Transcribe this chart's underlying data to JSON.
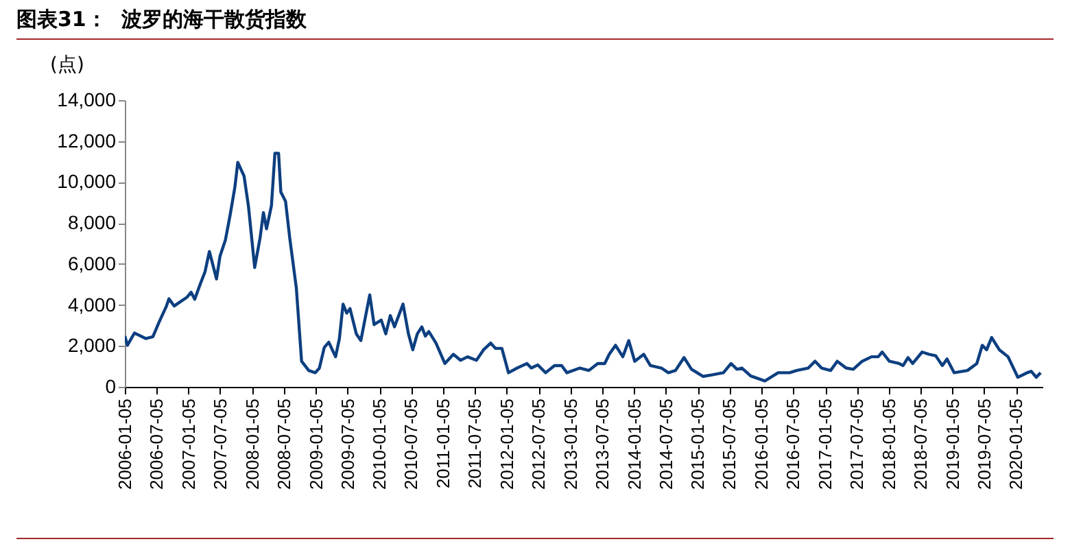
{
  "chart_data": {
    "type": "line",
    "title": "图表31：  波罗的海干散货指数",
    "ylabel": "(点)",
    "xlim": [
      "2006-01-05",
      "2020-06-05"
    ],
    "ylim": [
      0,
      14000
    ],
    "yticks": [
      0,
      {
        "value": 2000,
        "label": "2,000"
      },
      {
        "value": 4000,
        "label": "4,000"
      },
      {
        "value": 6000,
        "label": "6,000"
      },
      {
        "value": 8000,
        "label": "8,000"
      },
      {
        "value": 10000,
        "label": "10,000"
      },
      {
        "value": 12000,
        "label": "12,000"
      },
      {
        "value": 14000,
        "label": "14,000"
      }
    ],
    "xticks": [
      "2006-01-05",
      "2006-07-05",
      "2007-01-05",
      "2007-07-05",
      "2008-01-05",
      "2008-07-05",
      "2009-01-05",
      "2009-07-05",
      "2010-01-05",
      "2010-07-05",
      "2011-01-05",
      "2011-07-05",
      "2012-01-05",
      "2012-07-05",
      "2013-01-05",
      "2013-07-05",
      "2014-01-05",
      "2014-07-05",
      "2015-01-05",
      "2015-07-05",
      "2016-01-05",
      "2016-07-05",
      "2017-01-05",
      "2017-07-05",
      "2018-01-05",
      "2018-07-05",
      "2019-01-05",
      "2019-07-05",
      "2020-01-05"
    ],
    "series": [
      {
        "color": "#0d3f80",
        "x": [
          "2006-01-05",
          "2006-01-20",
          "2006-03-01",
          "2006-05-05",
          "2006-06-15",
          "2006-07-20",
          "2006-09-01",
          "2006-09-15",
          "2006-10-15",
          "2006-12-28",
          "2007-01-20",
          "2007-02-10",
          "2007-03-15",
          "2007-04-10",
          "2007-05-05",
          "2007-06-15",
          "2007-07-05",
          "2007-08-05",
          "2007-09-01",
          "2007-09-28",
          "2007-10-15",
          "2007-11-20",
          "2007-12-15",
          "2008-01-20",
          "2008-02-20",
          "2008-03-10",
          "2008-03-28",
          "2008-04-25",
          "2008-05-15",
          "2008-06-05",
          "2008-06-18",
          "2008-07-15",
          "2008-08-08",
          "2008-09-15",
          "2008-10-15",
          "2008-11-25",
          "2009-01-01",
          "2009-01-25",
          "2009-02-22",
          "2009-03-20",
          "2009-04-28",
          "2009-05-20",
          "2009-06-10",
          "2009-07-01",
          "2009-07-20",
          "2009-08-25",
          "2009-09-20",
          "2009-11-10",
          "2009-12-05",
          "2010-01-15",
          "2010-02-10",
          "2010-03-08",
          "2010-04-01",
          "2010-05-20",
          "2010-06-20",
          "2010-07-15",
          "2010-08-10",
          "2010-09-05",
          "2010-09-25",
          "2010-10-15",
          "2010-11-25",
          "2011-01-15",
          "2011-03-05",
          "2011-04-15",
          "2011-05-25",
          "2011-07-15",
          "2011-08-25",
          "2011-10-05",
          "2011-11-01",
          "2011-12-08",
          "2012-01-15",
          "2012-03-05",
          "2012-04-30",
          "2012-05-25",
          "2012-07-01",
          "2012-08-15",
          "2012-10-05",
          "2012-11-15",
          "2012-12-15",
          "2013-02-28",
          "2013-04-20",
          "2013-06-10",
          "2013-07-20",
          "2013-08-15",
          "2013-09-20",
          "2013-11-01",
          "2013-12-05",
          "2014-01-08",
          "2014-03-01",
          "2014-04-08",
          "2014-06-10",
          "2014-07-20",
          "2014-08-30",
          "2014-10-18",
          "2014-11-30",
          "2015-02-05",
          "2015-03-25",
          "2015-06-01",
          "2015-07-15",
          "2015-08-18",
          "2015-09-15",
          "2015-11-05",
          "2016-01-25",
          "2016-04-10",
          "2016-06-15",
          "2016-07-25",
          "2016-09-30",
          "2016-11-08",
          "2016-12-15",
          "2017-02-05",
          "2017-03-15",
          "2017-05-05",
          "2017-06-15",
          "2017-08-05",
          "2017-09-28",
          "2017-11-05",
          "2017-11-28",
          "2018-01-08",
          "2018-03-05",
          "2018-03-28",
          "2018-04-25",
          "2018-05-22",
          "2018-07-15",
          "2018-08-25",
          "2018-10-01",
          "2018-11-08",
          "2018-12-05",
          "2019-01-15",
          "2019-04-01",
          "2019-05-25",
          "2019-06-25",
          "2019-07-20",
          "2019-08-18",
          "2019-10-01",
          "2019-11-20",
          "2020-01-15",
          "2020-03-08",
          "2020-04-01",
          "2020-04-30",
          "2020-05-25"
        ],
        "values": [
          2480,
          2030,
          2630,
          2360,
          2450,
          3150,
          3950,
          4300,
          3950,
          4380,
          4620,
          4280,
          5050,
          5620,
          6610,
          5270,
          6380,
          7170,
          8390,
          9730,
          10960,
          10290,
          8840,
          5830,
          7280,
          8510,
          7720,
          8840,
          11410,
          11410,
          9510,
          9060,
          7280,
          4820,
          1250,
          800,
          690,
          910,
          1920,
          2180,
          1470,
          2360,
          4040,
          3600,
          3820,
          2590,
          2260,
          4490,
          3040,
          3260,
          2590,
          3480,
          2930,
          4040,
          2590,
          1810,
          2590,
          2930,
          2480,
          2700,
          2140,
          1140,
          1590,
          1300,
          1470,
          1300,
          1810,
          2140,
          1880,
          1880,
          690,
          920,
          1140,
          920,
          1070,
          690,
          1040,
          1040,
          690,
          920,
          800,
          1140,
          1140,
          1590,
          2030,
          1470,
          2260,
          1250,
          1590,
          1040,
          920,
          690,
          800,
          1430,
          860,
          510,
          580,
          690,
          1140,
          860,
          920,
          530,
          290,
          690,
          690,
          800,
          920,
          1250,
          920,
          800,
          1250,
          920,
          860,
          1250,
          1470,
          1470,
          1700,
          1250,
          1140,
          1040,
          1430,
          1140,
          1700,
          1590,
          1520,
          1040,
          1360,
          690,
          800,
          1140,
          2030,
          1810,
          2410,
          1810,
          1470,
          470,
          690,
          760,
          470,
          690
        ]
      }
    ]
  }
}
